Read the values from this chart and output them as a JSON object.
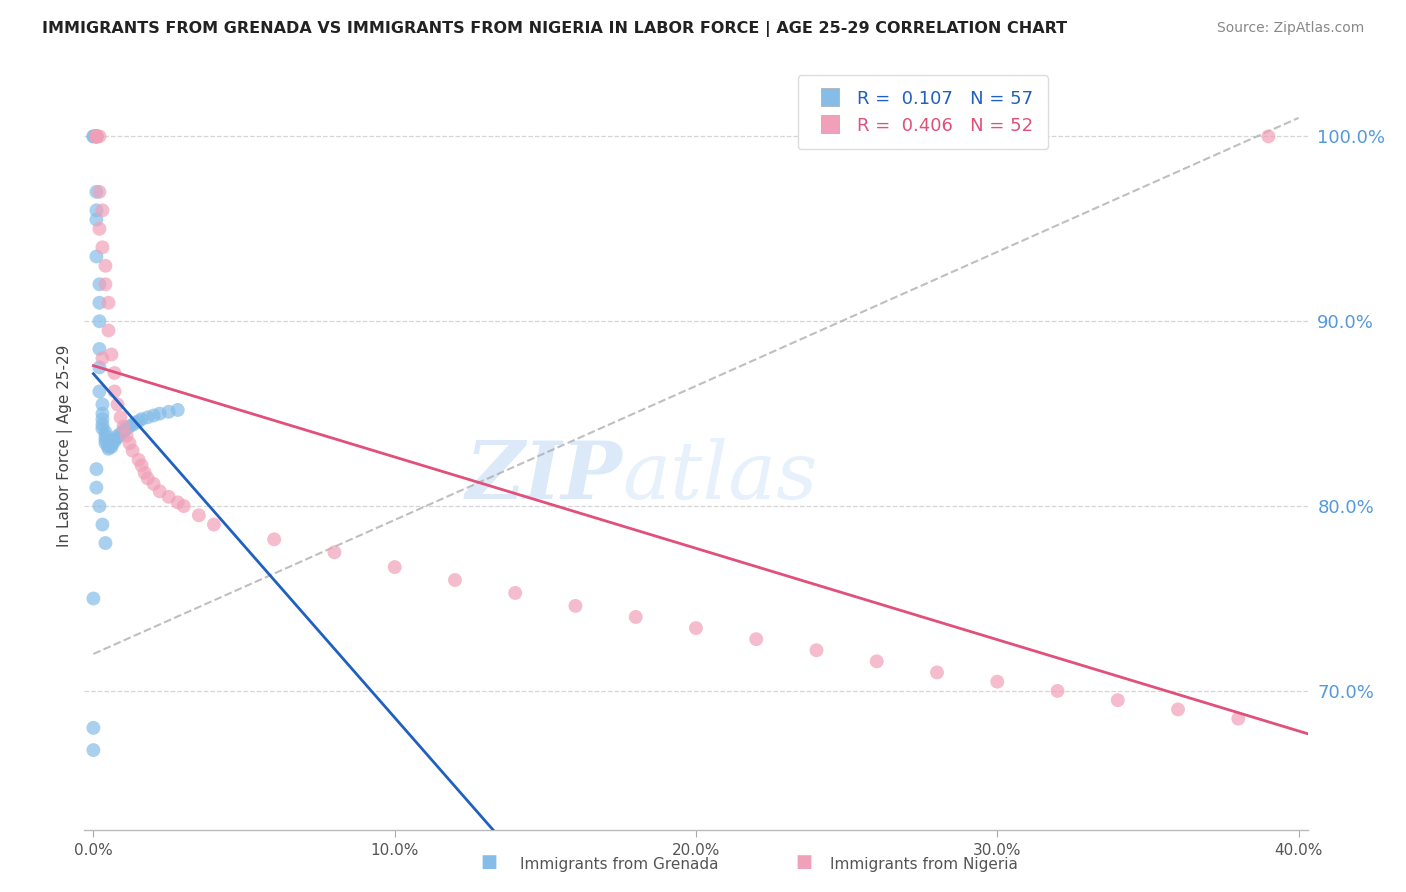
{
  "title": "IMMIGRANTS FROM GRENADA VS IMMIGRANTS FROM NIGERIA IN LABOR FORCE | AGE 25-29 CORRELATION CHART",
  "source": "Source: ZipAtlas.com",
  "ylabel": "In Labor Force | Age 25-29",
  "grenada_label": "Immigrants from Grenada",
  "nigeria_label": "Immigrants from Nigeria",
  "grenada_R": 0.107,
  "grenada_N": 57,
  "nigeria_R": 0.406,
  "nigeria_N": 52,
  "blue_scatter": "#85bde8",
  "pink_scatter": "#f0a0b8",
  "blue_line": "#2060c0",
  "pink_line": "#e0507a",
  "right_axis_color": "#5599dd",
  "watermark_color": "#d5eaf8",
  "grenada_x": [
    0.0,
    0.0,
    0.0,
    0.0,
    0.001,
    0.001,
    0.001,
    0.001,
    0.001,
    0.001,
    0.001,
    0.001,
    0.002,
    0.002,
    0.002,
    0.002,
    0.002,
    0.002,
    0.003,
    0.003,
    0.003,
    0.003,
    0.003,
    0.004,
    0.004,
    0.004,
    0.004,
    0.005,
    0.005,
    0.005,
    0.006,
    0.006,
    0.006,
    0.007,
    0.007,
    0.008,
    0.008,
    0.009,
    0.01,
    0.01,
    0.011,
    0.012,
    0.013,
    0.014,
    0.015,
    0.016,
    0.018,
    0.02,
    0.022,
    0.025,
    0.028,
    0.0,
    0.001,
    0.001,
    0.002,
    0.003,
    0.004
  ],
  "grenada_y": [
    0.68,
    0.668,
    1.0,
    1.0,
    1.0,
    1.0,
    1.0,
    1.0,
    0.96,
    0.97,
    0.955,
    0.935,
    0.92,
    0.91,
    0.9,
    0.885,
    0.875,
    0.862,
    0.855,
    0.85,
    0.847,
    0.844,
    0.842,
    0.84,
    0.838,
    0.836,
    0.834,
    0.833,
    0.832,
    0.831,
    0.832,
    0.833,
    0.834,
    0.835,
    0.836,
    0.837,
    0.838,
    0.839,
    0.84,
    0.841,
    0.842,
    0.843,
    0.844,
    0.845,
    0.846,
    0.847,
    0.848,
    0.849,
    0.85,
    0.851,
    0.852,
    0.75,
    0.82,
    0.81,
    0.8,
    0.79,
    0.78
  ],
  "nigeria_x": [
    0.001,
    0.001,
    0.001,
    0.001,
    0.002,
    0.002,
    0.003,
    0.003,
    0.004,
    0.004,
    0.005,
    0.005,
    0.006,
    0.007,
    0.007,
    0.008,
    0.009,
    0.01,
    0.011,
    0.012,
    0.013,
    0.015,
    0.016,
    0.017,
    0.018,
    0.02,
    0.022,
    0.025,
    0.028,
    0.03,
    0.035,
    0.04,
    0.06,
    0.08,
    0.1,
    0.12,
    0.14,
    0.16,
    0.18,
    0.2,
    0.22,
    0.24,
    0.26,
    0.28,
    0.3,
    0.32,
    0.34,
    0.36,
    0.38,
    0.002,
    0.003,
    0.39
  ],
  "nigeria_y": [
    1.0,
    1.0,
    1.0,
    1.0,
    1.0,
    0.97,
    0.96,
    0.94,
    0.93,
    0.92,
    0.91,
    0.895,
    0.882,
    0.872,
    0.862,
    0.855,
    0.848,
    0.843,
    0.838,
    0.834,
    0.83,
    0.825,
    0.822,
    0.818,
    0.815,
    0.812,
    0.808,
    0.805,
    0.802,
    0.8,
    0.795,
    0.79,
    0.782,
    0.775,
    0.767,
    0.76,
    0.753,
    0.746,
    0.74,
    0.734,
    0.728,
    0.722,
    0.716,
    0.71,
    0.705,
    0.7,
    0.695,
    0.69,
    0.685,
    0.95,
    0.88,
    1.0
  ],
  "xlim": [
    -0.003,
    0.403
  ],
  "ylim": [
    0.625,
    1.04
  ],
  "yticks": [
    0.7,
    0.8,
    0.9,
    1.0
  ],
  "ytick_labels": [
    "70.0%",
    "80.0%",
    "90.0%",
    "100.0%"
  ],
  "xticks": [
    0.0,
    0.1,
    0.2,
    0.3,
    0.4
  ],
  "xtick_labels": [
    "0.0%",
    "10.0%",
    "20.0%",
    "30.0%",
    "40.0%"
  ]
}
